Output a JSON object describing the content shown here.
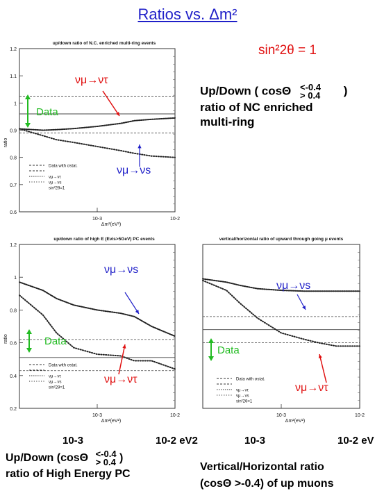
{
  "title": "Ratios vs. Δm²",
  "sin2": "sin²2θ = 1",
  "panel_top": {
    "title": "up/down ratio of N.C. enriched multi-ring events",
    "note_line1": "Up/Down ( cosΘ",
    "note_cond_top": "<-0.4",
    "note_cond_bottom": "> 0.4",
    "note_close": ")",
    "note_line2": "ratio of NC enriched",
    "note_line3": "multi-ring",
    "label_tau": "νμ→ντ",
    "label_s": "νμ→νs",
    "label_data": "Data"
  },
  "panel_bl": {
    "title": "up/down ratio of high E (Evis>5GeV) PC events",
    "label_tau": "νμ→ντ",
    "label_s": "νμ→νs",
    "label_data": "Data"
  },
  "panel_br": {
    "title": "vertical/horizontal ratio of upward through going μ events",
    "label_tau": "νμ→ντ",
    "label_s": "νμ→νs",
    "label_data": "Data"
  },
  "bottom_axis": {
    "left_low": "10-3",
    "left_high": "10-2 eV2",
    "right_low": "10-3",
    "right_high": "10-2 eV"
  },
  "bottom_left_caption": {
    "line1": "Up/Down (cosΘ",
    "cond_top": "<-0.4",
    "cond_bottom": "> 0.4",
    "close": ")",
    "line2": "ratio of High Energy PC"
  },
  "bottom_right_caption": {
    "line1": "Vertical/Horizontal ratio",
    "line2": "(cosΘ >-0.4) of up muons"
  },
  "legend": {
    "data": "Data with σstat.",
    "tau": "νμ→ντ",
    "s": "νμ→νs",
    "sin": "sin²2θ=1"
  },
  "colors": {
    "title": "#1f1fc8",
    "annotation": "#e01010",
    "data_arrow": "#22bb22",
    "pointer": "#1f1fc8",
    "curves": "#222222"
  },
  "chart_data": [
    {
      "type": "line",
      "title": "up/down ratio of N.C. enriched multi-ring events",
      "xlabel": "Δm²(eV²)",
      "ylabel": "ratio",
      "x_scale": "log",
      "xlim": [
        0.0001,
        0.01
      ],
      "ylim": [
        0.6,
        1.2
      ],
      "yticks": [
        0.6,
        0.7,
        0.8,
        0.9,
        1,
        1.1,
        1.2
      ],
      "xtick_labels": [
        "10-3",
        "10-2"
      ],
      "data_band": {
        "central": 0.96,
        "upper": 1.025,
        "lower": 0.89
      },
      "series": [
        {
          "name": "νμ→ντ",
          "x": [
            0.0001,
            0.0002,
            0.0003,
            0.0005,
            0.001,
            0.002,
            0.003,
            0.005,
            0.01
          ],
          "y": [
            0.905,
            0.9,
            0.902,
            0.906,
            0.914,
            0.925,
            0.935,
            0.94,
            0.945
          ]
        },
        {
          "name": "νμ→νs",
          "x": [
            0.0001,
            0.0002,
            0.0003,
            0.0005,
            0.001,
            0.002,
            0.003,
            0.005,
            0.01
          ],
          "y": [
            0.905,
            0.88,
            0.865,
            0.855,
            0.84,
            0.825,
            0.815,
            0.805,
            0.8
          ]
        }
      ],
      "grid": false,
      "legend_position": "lower-left"
    },
    {
      "type": "line",
      "title": "up/down ratio of high E (Evis>5GeV) PC events",
      "xlabel": "Δm²(eV²)",
      "ylabel": "ratio",
      "x_scale": "log",
      "xlim": [
        0.0001,
        0.01
      ],
      "ylim": [
        0.2,
        1.2
      ],
      "yticks": [
        0.2,
        0.4,
        0.6,
        0.8,
        1,
        1.2
      ],
      "xtick_labels": [
        "10-3",
        "10-2"
      ],
      "data_band": {
        "central": 0.51,
        "upper": 0.62,
        "lower": 0.43
      },
      "series": [
        {
          "name": "νμ→νs",
          "x": [
            0.0001,
            0.0002,
            0.0003,
            0.0005,
            0.001,
            0.002,
            0.003,
            0.005,
            0.01
          ],
          "y": [
            0.97,
            0.92,
            0.87,
            0.83,
            0.8,
            0.78,
            0.76,
            0.7,
            0.64
          ]
        },
        {
          "name": "νμ→ντ",
          "x": [
            0.0001,
            0.0002,
            0.0003,
            0.0005,
            0.001,
            0.002,
            0.003,
            0.005,
            0.01
          ],
          "y": [
            0.89,
            0.77,
            0.66,
            0.57,
            0.53,
            0.52,
            0.49,
            0.49,
            0.44
          ]
        }
      ],
      "grid": false,
      "legend_position": "lower-right"
    },
    {
      "type": "line",
      "title": "vertical/horizontal ratio of upward through going μ events",
      "xlabel": "Δm²(eV²)",
      "ylabel": "",
      "x_scale": "log",
      "xlim": [
        0.0001,
        0.01
      ],
      "ylim": [
        0.2,
        1.2
      ],
      "xtick_labels": [
        "10-3",
        "10-2"
      ],
      "data_band": {
        "central": 0.68,
        "upper": 0.76,
        "lower": 0.6
      },
      "series": [
        {
          "name": "νμ→νs",
          "x": [
            0.0001,
            0.0002,
            0.0003,
            0.0005,
            0.001,
            0.002,
            0.003,
            0.005,
            0.01
          ],
          "y": [
            0.99,
            0.97,
            0.95,
            0.93,
            0.92,
            0.915,
            0.915,
            0.915,
            0.915
          ]
        },
        {
          "name": "νμ→ντ",
          "x": [
            0.0001,
            0.0002,
            0.0003,
            0.0005,
            0.001,
            0.002,
            0.003,
            0.005,
            0.01
          ],
          "y": [
            0.98,
            0.92,
            0.84,
            0.75,
            0.66,
            0.62,
            0.6,
            0.58,
            0.58
          ]
        }
      ],
      "grid": false,
      "legend_position": "lower-right"
    }
  ]
}
